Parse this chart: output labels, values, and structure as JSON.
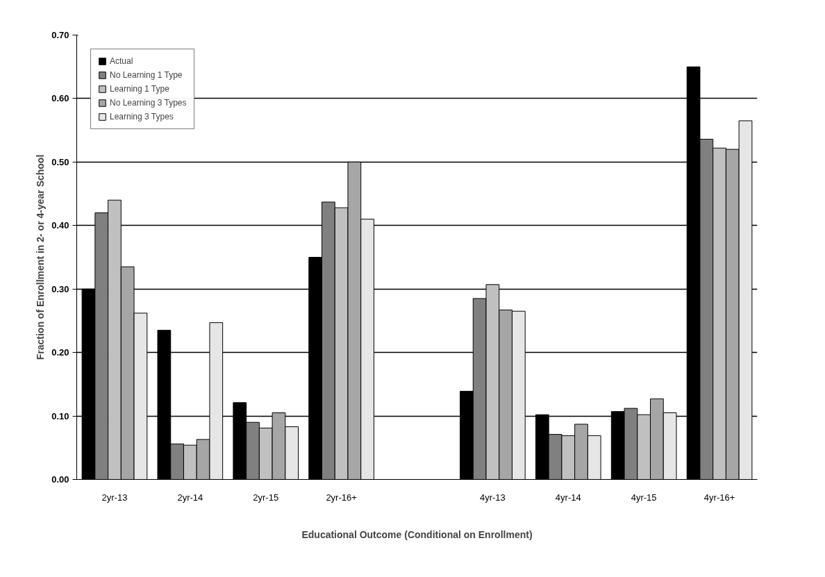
{
  "chart_data": {
    "type": "bar",
    "xlabel": "Educational Outcome (Conditional on Enrollment)",
    "ylabel": "Fraction of Enrollment in 2- or 4-year School",
    "categories": [
      "2yr-13",
      "2yr-14",
      "2yr-15",
      "2yr-16+",
      null,
      "4yr-13",
      "4yr-14",
      "4yr-15",
      "4yr-16+"
    ],
    "series": [
      {
        "name": "Actual",
        "color": "#000000",
        "values": [
          0.3,
          0.235,
          0.121,
          0.35,
          null,
          0.139,
          0.102,
          0.107,
          0.65
        ]
      },
      {
        "name": "No Learning 1 Type",
        "color": "#808080",
        "values": [
          0.42,
          0.056,
          0.09,
          0.437,
          null,
          0.285,
          0.071,
          0.112,
          0.536
        ]
      },
      {
        "name": "Learning 1 Type",
        "color": "#c0c0c0",
        "values": [
          0.44,
          0.054,
          0.081,
          0.428,
          null,
          0.307,
          0.069,
          0.102,
          0.522
        ]
      },
      {
        "name": "No Learning 3 Types",
        "color": "#a6a6a6",
        "values": [
          0.335,
          0.063,
          0.105,
          0.5,
          null,
          0.267,
          0.087,
          0.127,
          0.52
        ]
      },
      {
        "name": "Learning 3 Types",
        "color": "#e6e6e6",
        "values": [
          0.262,
          0.247,
          0.083,
          0.41,
          null,
          0.265,
          0.069,
          0.105,
          0.565
        ]
      }
    ],
    "ylim": [
      0,
      0.7
    ],
    "yticks": [
      {
        "value": 0,
        "label": "0.00"
      },
      {
        "value": 0.1,
        "label": "0.10"
      },
      {
        "value": 0.2,
        "label": "0.20"
      },
      {
        "value": 0.3,
        "label": "0.30"
      },
      {
        "value": 0.4,
        "label": "0.40"
      },
      {
        "value": 0.5,
        "label": "0.50"
      },
      {
        "value": 0.6,
        "label": "0.60"
      },
      {
        "value": 0.7,
        "label": "0.70"
      }
    ],
    "grid": "y",
    "legend": "top left"
  }
}
